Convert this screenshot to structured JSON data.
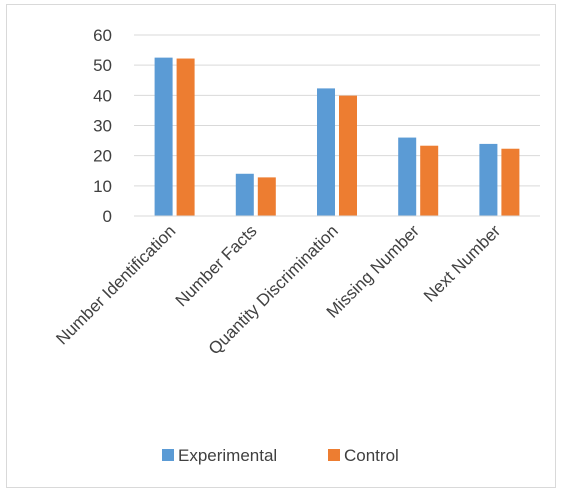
{
  "colors": {
    "experimental": "#5b9bd5",
    "control": "#ed7d31",
    "gridline": "#d9d9d9",
    "text": "#404040"
  },
  "chart_data": {
    "type": "bar",
    "title": "",
    "xlabel": "",
    "ylabel": "",
    "categories": [
      "Number Identification",
      "Number Facts",
      "Quantity Discrimination",
      "Missing Number",
      "Next Number"
    ],
    "series": [
      {
        "name": "Experimental",
        "values": [
          52.5,
          14,
          42.3,
          26,
          23.9
        ]
      },
      {
        "name": "Control",
        "values": [
          52.2,
          12.8,
          39.9,
          23.3,
          22.3
        ]
      }
    ],
    "ylim": [
      0,
      60
    ],
    "yticks": [
      0,
      10,
      20,
      30,
      40,
      50,
      60
    ],
    "grid": true,
    "legend_position": "bottom"
  }
}
